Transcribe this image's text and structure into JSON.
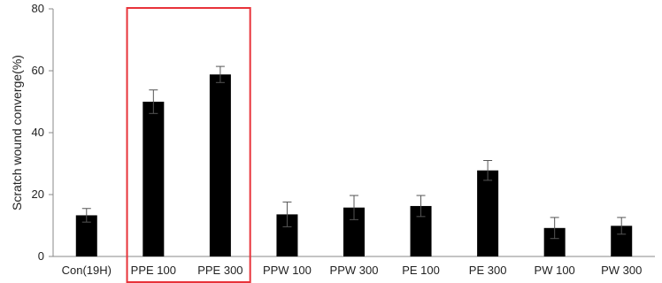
{
  "chart_data": {
    "type": "bar",
    "title": "",
    "xlabel": "",
    "ylabel": "Scratch wound converge(%)",
    "ylim": [
      0,
      80
    ],
    "yticks": [
      0,
      20,
      40,
      60,
      80
    ],
    "grid": false,
    "categories": [
      "Con(19H)",
      "PPE 100",
      "PPE 300",
      "PPW 100",
      "PPW 300",
      "PE 100",
      "PE 300",
      "PW 100",
      "PW 300"
    ],
    "values": [
      13.3,
      50.0,
      58.8,
      13.6,
      15.8,
      16.3,
      27.8,
      9.2,
      9.9
    ],
    "errors": [
      2.2,
      3.8,
      2.6,
      4.0,
      3.9,
      3.4,
      3.2,
      3.4,
      2.7
    ],
    "bar_color": "#000000",
    "highlight": {
      "categories": [
        "PPE 100",
        "PPE 300"
      ],
      "color": "#e8333a"
    }
  }
}
